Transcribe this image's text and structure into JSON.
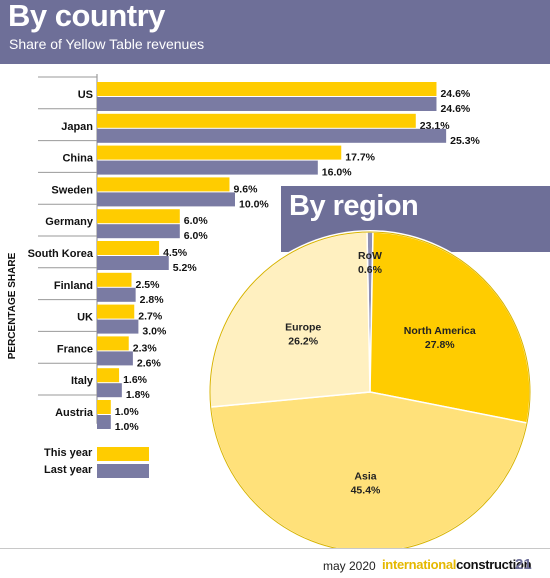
{
  "header": {
    "title": "By country",
    "subtitle": "Share of Yellow Table revenues"
  },
  "region_header": {
    "title": "By region"
  },
  "colors": {
    "this_year": "#ffcc00",
    "last_year": "#7a7ba3",
    "header_bg": "#6e6f98",
    "pie_north_america": "#ffcc00",
    "pie_asia": "#ffe17a",
    "pie_europe": "#fff0c0",
    "pie_row": "#8f90b4"
  },
  "legend": {
    "this_year": "This year",
    "last_year": "Last year"
  },
  "chart_data": [
    {
      "type": "bar",
      "orientation": "horizontal",
      "title": "By country",
      "subtitle": "Share of Yellow Table revenues",
      "ylabel": "PERCENTAGE SHARE",
      "categories": [
        "US",
        "Japan",
        "China",
        "Sweden",
        "Germany",
        "South Korea",
        "Finland",
        "UK",
        "France",
        "Italy",
        "Austria"
      ],
      "series": [
        {
          "name": "This year",
          "values": [
            24.6,
            23.1,
            17.7,
            9.6,
            6.0,
            4.5,
            2.5,
            2.7,
            2.3,
            1.6,
            1.0
          ]
        },
        {
          "name": "Last year",
          "values": [
            24.6,
            25.3,
            16.0,
            10.0,
            6.0,
            5.2,
            2.8,
            3.0,
            2.6,
            1.8,
            1.0
          ]
        }
      ],
      "value_labels": {
        "This year": [
          "24.6%",
          "23.1%",
          "17.7%",
          "9.6%",
          "6.0%",
          "4.5%",
          "2.5%",
          "2.7%",
          "2.3%",
          "1.6%",
          "1.0%"
        ],
        "Last year": [
          "24.6%",
          "25.3%",
          "16.0%",
          "10.0%",
          "6.0%",
          "5.2%",
          "2.8%",
          "3.0%",
          "2.6%",
          "1.8%",
          "1.0%"
        ]
      },
      "legend_position": "bottom-left"
    },
    {
      "type": "pie",
      "title": "By region",
      "categories": [
        "RoW",
        "North America",
        "Asia",
        "Europe"
      ],
      "values": [
        0.6,
        27.8,
        45.4,
        26.2
      ],
      "labels": [
        "0.6%",
        "27.8%",
        "45.4%",
        "26.2%"
      ]
    }
  ],
  "footer": {
    "date": "may 2020",
    "brand_part1": "international",
    "brand_part2": "construction",
    "page": "21"
  }
}
